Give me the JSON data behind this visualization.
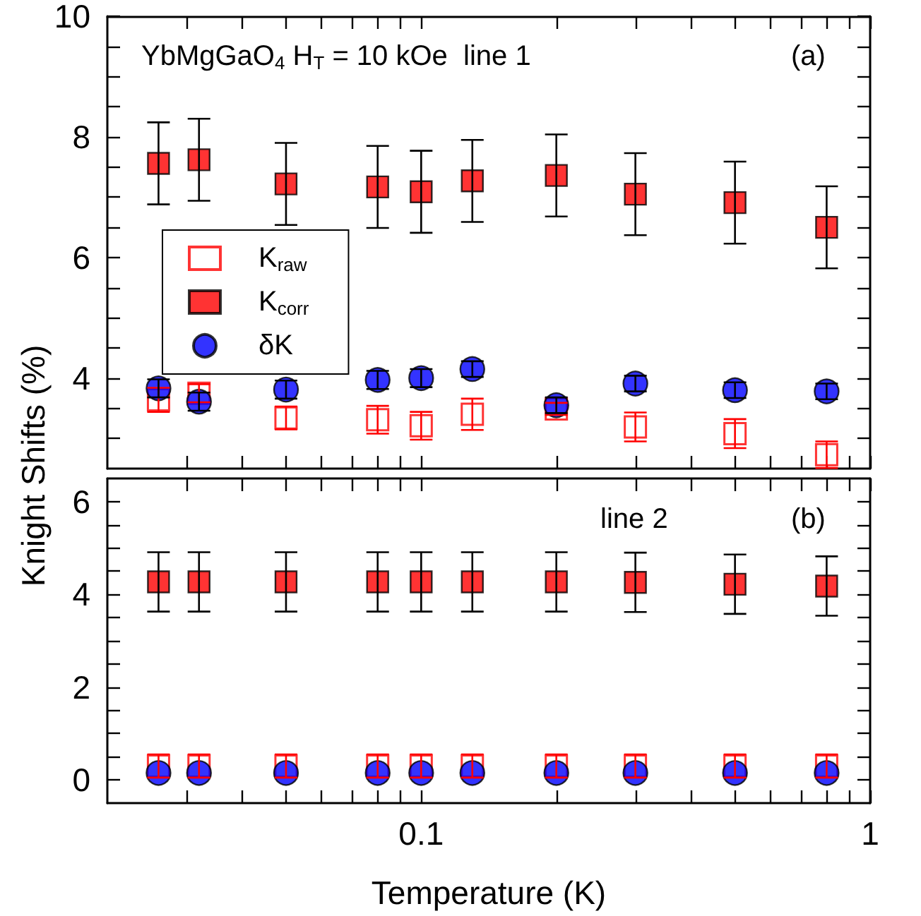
{
  "chart_data": [
    {
      "type": "scatter",
      "annotations": [
        "YbMgGaO$_{4}$ H$_{T}$ = 10 kOe  line 1",
        "(a)"
      ],
      "x": [
        0.026,
        0.032,
        0.05,
        0.08,
        0.1,
        0.13,
        0.2,
        0.3,
        0.5,
        0.8
      ],
      "series": [
        {
          "name": "K$_{raw}$",
          "color": "#ff0000",
          "marker": "square",
          "values": [
            3.64,
            3.75,
            3.34,
            3.31,
            3.21,
            3.4,
            3.49,
            3.19,
            3.08,
            2.73
          ],
          "errors": [
            0.2,
            0.15,
            0.19,
            0.23,
            0.23,
            0.26,
            0.1,
            0.24,
            0.24,
            0.22
          ]
        },
        {
          "name": "K$_{corr}$",
          "color": "#ff0000",
          "marker": "square",
          "values": [
            7.56,
            7.62,
            7.22,
            7.17,
            7.09,
            7.27,
            7.36,
            7.05,
            6.91,
            6.5
          ],
          "errors": [
            0.68,
            0.68,
            0.68,
            0.68,
            0.68,
            0.68,
            0.68,
            0.68,
            0.68,
            0.68
          ]
        },
        {
          "name": "δK",
          "color": "#0000ff",
          "marker": "circle",
          "values": [
            3.83,
            3.61,
            3.81,
            3.97,
            4.0,
            4.15,
            3.55,
            3.91,
            3.8,
            3.78
          ],
          "errors": [
            0.15,
            0.15,
            0.15,
            0.15,
            0.15,
            0.13,
            0.13,
            0.13,
            0.13,
            0.13
          ]
        }
      ],
      "log": "x",
      "xlim": [
        0.02,
        1
      ],
      "xticks": [
        {
          "value": 0.03,
          "label": null
        },
        {
          "value": 0.04,
          "label": null
        },
        {
          "value": 0.05,
          "label": null
        },
        {
          "value": 0.06,
          "label": null
        },
        {
          "value": 0.07,
          "label": null
        },
        {
          "value": 0.08,
          "label": null
        },
        {
          "value": 0.09,
          "label": null
        },
        {
          "value": 0.1,
          "label": null
        },
        {
          "value": 0.2,
          "label": null
        },
        {
          "value": 0.3,
          "label": null
        },
        {
          "value": 0.4,
          "label": null
        },
        {
          "value": 0.5,
          "label": null
        },
        {
          "value": 0.6,
          "label": null
        },
        {
          "value": 0.7,
          "label": null
        },
        {
          "value": 0.8,
          "label": null
        },
        {
          "value": 0.9,
          "label": null
        },
        {
          "value": 1,
          "label": null
        }
      ],
      "ylim": [
        2.5,
        10
      ],
      "yticks": [
        {
          "value": 3,
          "label": null
        },
        {
          "value": 3.5,
          "label": null
        },
        4,
        {
          "value": 4.5,
          "label": null
        },
        {
          "value": 5,
          "label": null
        },
        {
          "value": 5.5,
          "label": null
        },
        6,
        {
          "value": 6.5,
          "label": null
        },
        {
          "value": 7,
          "label": null
        },
        {
          "value": 7.5,
          "label": null
        },
        8,
        {
          "value": 8.5,
          "label": null
        },
        {
          "value": 9,
          "label": null
        },
        {
          "value": 9.5,
          "label": null
        },
        10
      ],
      "tick_labels": "y",
      "legend": "left",
      "grid": false
    },
    {
      "type": "scatter",
      "annotations": [
        "line 2",
        "(b)"
      ],
      "xlabel": "Temperature (K)",
      "ylabel": "Knight Shifts (%)",
      "x": [
        0.026,
        0.032,
        0.05,
        0.08,
        0.1,
        0.13,
        0.2,
        0.3,
        0.5,
        0.8
      ],
      "series": [
        {
          "color": "#ff0000",
          "marker": "square",
          "values": [
            0.3,
            0.3,
            0.3,
            0.3,
            0.3,
            0.3,
            0.3,
            0.3,
            0.3,
            0.3
          ],
          "errors": [
            0.25,
            0.25,
            0.25,
            0.25,
            0.25,
            0.25,
            0.25,
            0.25,
            0.25,
            0.25
          ]
        },
        {
          "color": "#ff0000",
          "marker": "square",
          "values": [
            4.27,
            4.27,
            4.27,
            4.27,
            4.27,
            4.27,
            4.27,
            4.26,
            4.22,
            4.18
          ],
          "errors": [
            0.64,
            0.64,
            0.64,
            0.64,
            0.64,
            0.64,
            0.64,
            0.64,
            0.64,
            0.64
          ]
        },
        {
          "color": "#0000ff",
          "marker": "circle",
          "values": [
            0.15,
            0.15,
            0.15,
            0.15,
            0.15,
            0.15,
            0.15,
            0.15,
            0.15,
            0.15
          ]
        }
      ],
      "log": "x",
      "xlim": [
        0.02,
        1
      ],
      "xticks": [
        {
          "value": 0.03,
          "label": null
        },
        {
          "value": 0.04,
          "label": null
        },
        {
          "value": 0.05,
          "label": null
        },
        {
          "value": 0.06,
          "label": null
        },
        {
          "value": 0.07,
          "label": null
        },
        {
          "value": 0.08,
          "label": null
        },
        {
          "value": 0.09,
          "label": null
        },
        {
          "value": 0.1,
          "label": "0.1"
        },
        {
          "value": 0.2,
          "label": null
        },
        {
          "value": 0.3,
          "label": null
        },
        {
          "value": 0.4,
          "label": null
        },
        {
          "value": 0.5,
          "label": null
        },
        {
          "value": 0.6,
          "label": null
        },
        {
          "value": 0.7,
          "label": null
        },
        {
          "value": 0.8,
          "label": null
        },
        {
          "value": 0.9,
          "label": null
        },
        {
          "value": 1,
          "label": "1"
        }
      ],
      "ylim": [
        -0.5,
        6.5
      ],
      "yticks": [
        0,
        {
          "value": 0.5,
          "label": null
        },
        {
          "value": 1,
          "label": null
        },
        {
          "value": 1.5,
          "label": null
        },
        2,
        {
          "value": 2.5,
          "label": null
        },
        {
          "value": 3,
          "label": null
        },
        {
          "value": 3.5,
          "label": null
        },
        4,
        {
          "value": 4.5,
          "label": null
        },
        {
          "value": 5,
          "label": null
        },
        {
          "value": 5.5,
          "label": null
        },
        6
      ],
      "grid": false
    }
  ]
}
